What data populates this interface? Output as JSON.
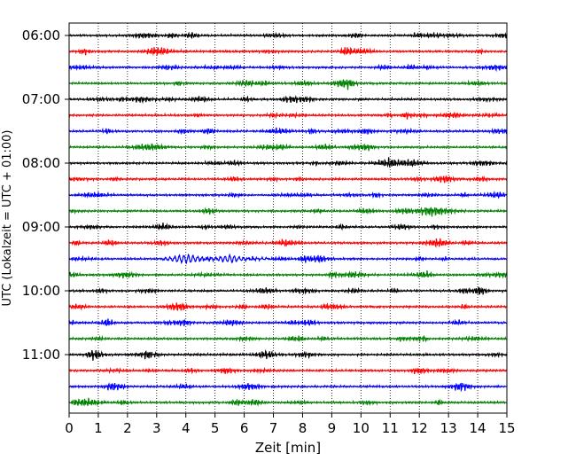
{
  "chart_data": {
    "type": "line",
    "title": "",
    "xlabel": "Zeit  [min]",
    "ylabel": "UTC (Lokalzeit = UTC + 01:00)",
    "xlim": [
      0,
      15
    ],
    "x_ticks": [
      0,
      1,
      2,
      3,
      4,
      5,
      6,
      7,
      8,
      9,
      10,
      11,
      12,
      13,
      14,
      15
    ],
    "x_tick_labels": [
      "0",
      "1",
      "2",
      "3",
      "4",
      "5",
      "6",
      "7",
      "8",
      "9",
      "10",
      "11",
      "12",
      "13",
      "14",
      "15"
    ],
    "y_tick_labels": [
      "06:00",
      "07:00",
      "08:00",
      "09:00",
      "10:00",
      "11:00"
    ],
    "y_tick_every_n_traces": 4,
    "grid": "x-dotted",
    "legend": "none",
    "trace_minutes": 15,
    "traces": [
      {
        "start": "06:00",
        "color": "#000000"
      },
      {
        "start": "06:15",
        "color": "#ff0000"
      },
      {
        "start": "06:30",
        "color": "#0000ff"
      },
      {
        "start": "06:45",
        "color": "#008000"
      },
      {
        "start": "07:00",
        "color": "#000000"
      },
      {
        "start": "07:15",
        "color": "#ff0000"
      },
      {
        "start": "07:30",
        "color": "#0000ff"
      },
      {
        "start": "07:45",
        "color": "#008000"
      },
      {
        "start": "08:00",
        "color": "#000000"
      },
      {
        "start": "08:15",
        "color": "#ff0000"
      },
      {
        "start": "08:30",
        "color": "#0000ff"
      },
      {
        "start": "08:45",
        "color": "#008000"
      },
      {
        "start": "09:00",
        "color": "#000000"
      },
      {
        "start": "09:15",
        "color": "#ff0000"
      },
      {
        "start": "09:30",
        "color": "#0000ff",
        "events": [
          {
            "from_min": 3.2,
            "to_min": 6.8,
            "peak_min": 4.0
          }
        ]
      },
      {
        "start": "09:45",
        "color": "#008000"
      },
      {
        "start": "10:00",
        "color": "#000000"
      },
      {
        "start": "10:15",
        "color": "#ff0000"
      },
      {
        "start": "10:30",
        "color": "#0000ff"
      },
      {
        "start": "10:45",
        "color": "#008000"
      },
      {
        "start": "11:00",
        "color": "#000000"
      },
      {
        "start": "11:15",
        "color": "#ff0000"
      },
      {
        "start": "11:30",
        "color": "#0000ff"
      },
      {
        "start": "11:45",
        "color": "#008000"
      }
    ]
  }
}
